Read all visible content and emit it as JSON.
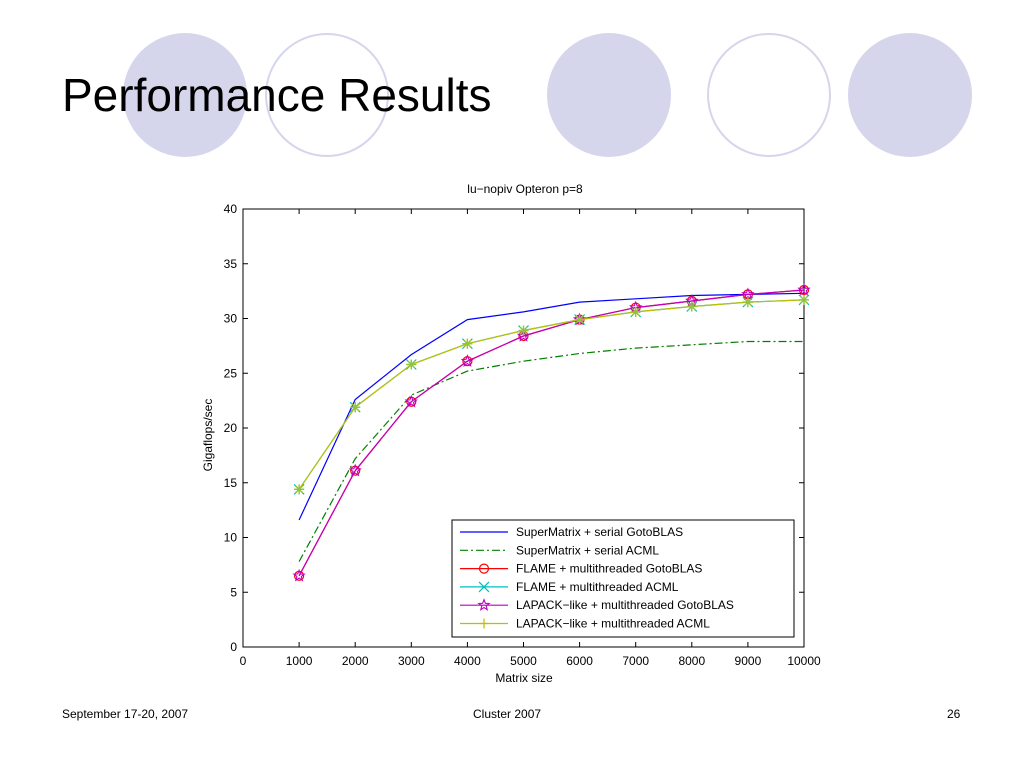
{
  "slide": {
    "title": "Performance Results",
    "footer_left": "September 17-20, 2007",
    "footer_center": "Cluster 2007",
    "page_number": "26",
    "decor_color": "#d5d6ec"
  },
  "chart_data": {
    "type": "line",
    "title": "lu−nopiv  Opteron p=8",
    "xlabel": "Matrix size",
    "ylabel": "Gigaflops/sec",
    "xlim": [
      0,
      10000
    ],
    "ylim": [
      0,
      40
    ],
    "x_ticks": [
      0,
      1000,
      2000,
      3000,
      4000,
      5000,
      6000,
      7000,
      8000,
      9000,
      10000
    ],
    "y_ticks": [
      0,
      5,
      10,
      15,
      20,
      25,
      30,
      35,
      40
    ],
    "grid": false,
    "legend_position": "bottom-right",
    "x": [
      1000,
      2000,
      3000,
      4000,
      5000,
      6000,
      7000,
      8000,
      9000,
      10000
    ],
    "series": [
      {
        "name": "SuperMatrix + serial GotoBLAS",
        "color": "#0000ff",
        "dash": "solid",
        "marker": "none",
        "values": [
          11.6,
          22.6,
          26.7,
          29.9,
          30.6,
          31.5,
          31.8,
          32.1,
          32.2,
          32.3
        ]
      },
      {
        "name": "SuperMatrix + serial ACML",
        "color": "#008000",
        "dash": "dashdot",
        "marker": "none",
        "values": [
          7.8,
          17.2,
          23.0,
          25.2,
          26.1,
          26.8,
          27.3,
          27.6,
          27.9,
          27.9
        ]
      },
      {
        "name": "FLAME + multithreaded GotoBLAS",
        "color": "#ff0000",
        "dash": "solid",
        "marker": "circle",
        "values": [
          6.5,
          16.1,
          22.4,
          26.1,
          28.4,
          29.9,
          31.0,
          31.6,
          32.2,
          32.6
        ]
      },
      {
        "name": "FLAME + multithreaded ACML",
        "color": "#00bfbf",
        "dash": "solid",
        "marker": "x",
        "values": [
          14.4,
          21.9,
          25.8,
          27.7,
          28.9,
          29.9,
          30.6,
          31.1,
          31.5,
          31.7
        ]
      },
      {
        "name": "LAPACK−like + multithreaded GotoBLAS",
        "color": "#bf00bf",
        "dash": "solid",
        "marker": "star",
        "values": [
          6.5,
          16.1,
          22.4,
          26.1,
          28.4,
          29.9,
          31.0,
          31.6,
          32.2,
          32.6
        ]
      },
      {
        "name": "LAPACK−like + multithreaded ACML",
        "color": "#bfbf00",
        "dash": "solid",
        "marker": "plus",
        "values": [
          14.4,
          21.9,
          25.8,
          27.7,
          28.9,
          29.9,
          30.6,
          31.1,
          31.5,
          31.7
        ]
      }
    ],
    "extra_markers": [
      {
        "series_color": "#8fc43c",
        "marker": "asterisk",
        "applies_to": "LAPACK−like + multithreaded ACML"
      }
    ]
  }
}
